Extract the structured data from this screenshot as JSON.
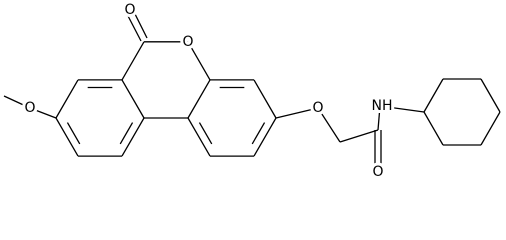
{
  "atoms": [
    {
      "label": "O"
    },
    {
      "label": "O"
    },
    {
      "label": "O"
    },
    {
      "label": "O"
    },
    {
      "label": "NH"
    },
    {
      "label": "O"
    }
  ]
}
